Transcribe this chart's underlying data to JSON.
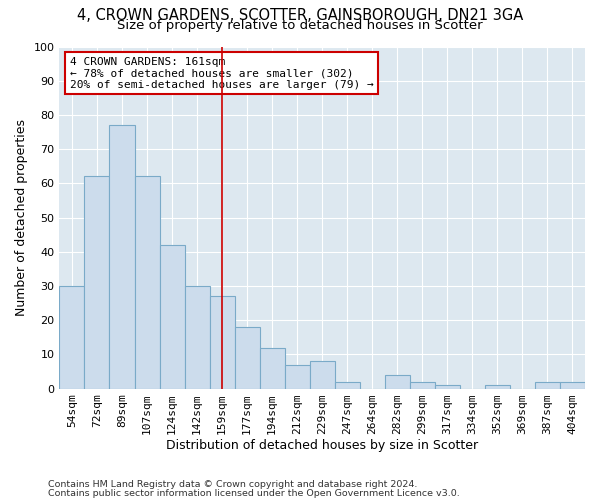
{
  "title1": "4, CROWN GARDENS, SCOTTER, GAINSBOROUGH, DN21 3GA",
  "title2": "Size of property relative to detached houses in Scotter",
  "xlabel": "Distribution of detached houses by size in Scotter",
  "ylabel": "Number of detached properties",
  "categories": [
    "54sqm",
    "72sqm",
    "89sqm",
    "107sqm",
    "124sqm",
    "142sqm",
    "159sqm",
    "177sqm",
    "194sqm",
    "212sqm",
    "229sqm",
    "247sqm",
    "264sqm",
    "282sqm",
    "299sqm",
    "317sqm",
    "334sqm",
    "352sqm",
    "369sqm",
    "387sqm",
    "404sqm"
  ],
  "values": [
    30,
    62,
    77,
    62,
    42,
    30,
    27,
    18,
    12,
    7,
    8,
    2,
    0,
    4,
    2,
    1,
    0,
    1,
    0,
    2,
    2
  ],
  "bar_color": "#ccdcec",
  "bar_edge_color": "#7aaac8",
  "vline_x_index": 6,
  "vline_color": "#cc0000",
  "annotation_text": "4 CROWN GARDENS: 161sqm\n← 78% of detached houses are smaller (302)\n20% of semi-detached houses are larger (79) →",
  "annotation_box_edgecolor": "#cc0000",
  "ylim": [
    0,
    100
  ],
  "yticks": [
    0,
    10,
    20,
    30,
    40,
    50,
    60,
    70,
    80,
    90,
    100
  ],
  "footnote1": "Contains HM Land Registry data © Crown copyright and database right 2024.",
  "footnote2": "Contains public sector information licensed under the Open Government Licence v3.0.",
  "background_color": "#dde8f0",
  "title_fontsize": 10.5,
  "subtitle_fontsize": 9.5,
  "axis_label_fontsize": 9,
  "tick_fontsize": 8,
  "footnote_fontsize": 6.8
}
